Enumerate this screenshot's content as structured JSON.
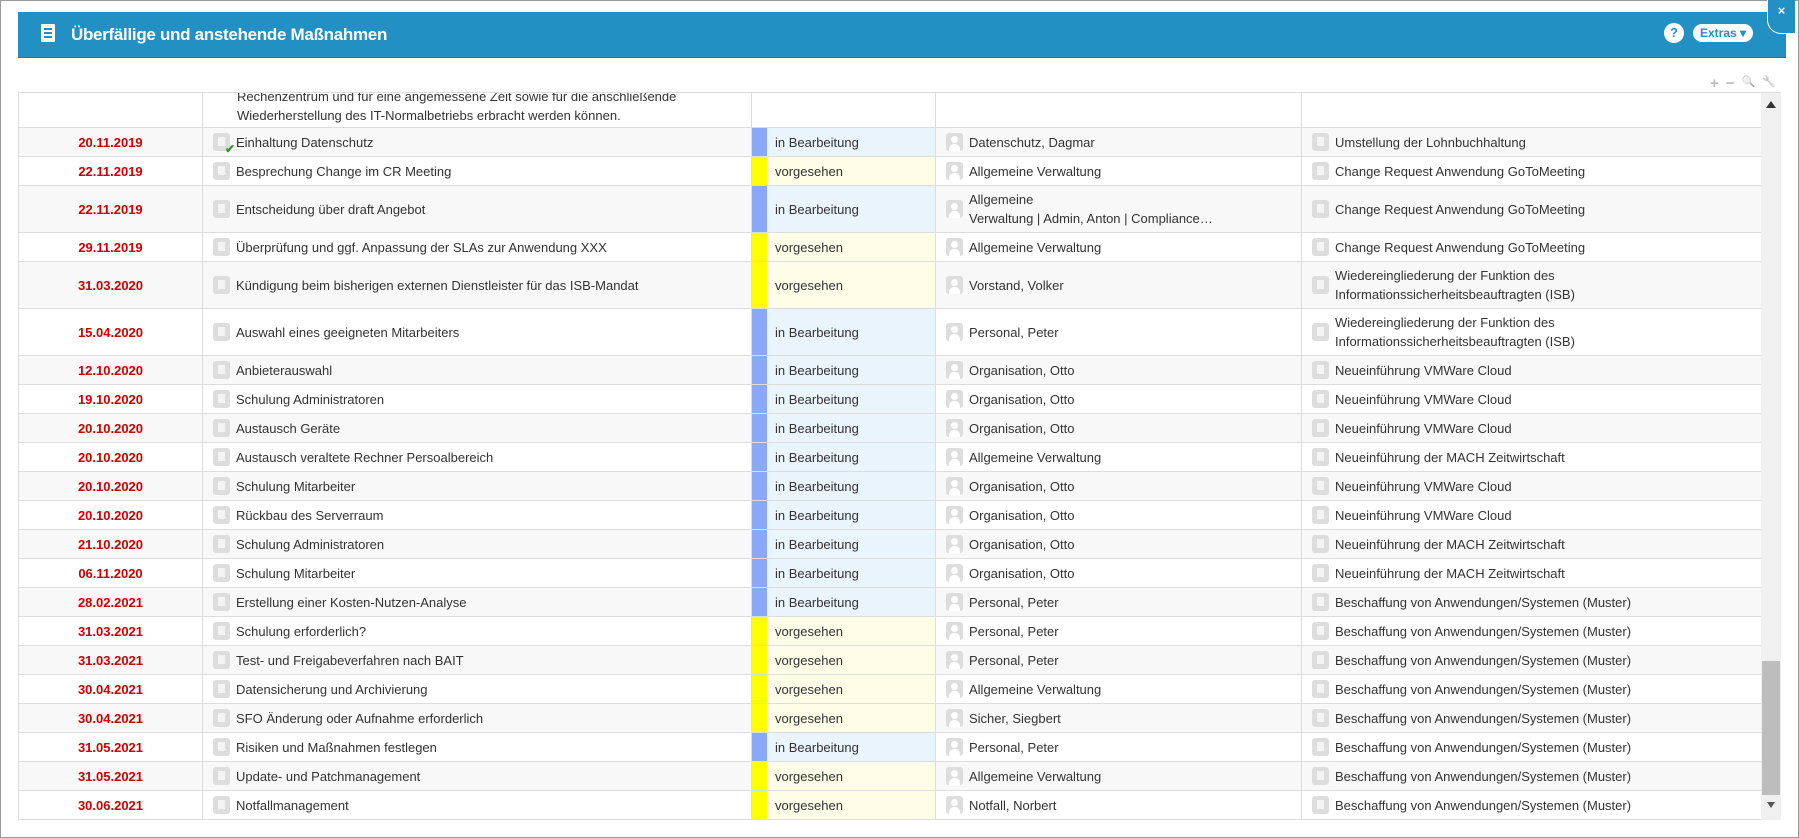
{
  "header": {
    "title": "Überfällige und anstehende Maßnahmen",
    "help": "?",
    "extras": "Extras ▾",
    "close": "×"
  },
  "toolbar": {
    "add": "+",
    "remove": "−",
    "search": "🔍",
    "settings": "🔧"
  },
  "partial_row": {
    "line1": "Rechenzentrum und für eine angemessene Zeit sowie für die anschließende",
    "line2": "Wiederherstellung des IT-Normalbetriebs erbracht werden können."
  },
  "status_colors": {
    "in Bearbeitung": {
      "bar": "#8aa8f8",
      "bg": "#eaf4fd"
    },
    "vorgesehen": {
      "bar": "#ffff00",
      "bg": "#fdfde8"
    }
  },
  "rows": [
    {
      "date": "20.11.2019",
      "title": "Einhaltung Datenschutz",
      "done": true,
      "status": "in Bearbeitung",
      "person": "Datenschutz, Dagmar",
      "related": "Umstellung der Lohnbuchhaltung"
    },
    {
      "date": "22.11.2019",
      "title": "Besprechung Change im CR Meeting",
      "status": "vorgesehen",
      "person": "Allgemeine Verwaltung",
      "related": "Change Request Anwendung GoToMeeting"
    },
    {
      "date": "22.11.2019",
      "title": "Entscheidung über draft Angebot",
      "status": "in Bearbeitung",
      "person": "Allgemeine\nVerwaltung | Admin, Anton | Compliance…",
      "related": "Change Request Anwendung GoToMeeting"
    },
    {
      "date": "29.11.2019",
      "title": "Überprüfung und ggf. Anpassung der SLAs zur Anwendung XXX",
      "status": "vorgesehen",
      "person": "Allgemeine Verwaltung",
      "related": "Change Request Anwendung GoToMeeting"
    },
    {
      "date": "31.03.2020",
      "title": "Kündigung beim bisherigen externen Dienstleister für das ISB-Mandat",
      "status": "vorgesehen",
      "person": "Vorstand, Volker",
      "related": "Wiedereingliederung der Funktion des\nInformationssicherheitsbeauftragten (ISB)"
    },
    {
      "date": "15.04.2020",
      "title": "Auswahl eines geeigneten Mitarbeiters",
      "status": "in Bearbeitung",
      "person": "Personal, Peter",
      "related": "Wiedereingliederung der Funktion des\nInformationssicherheitsbeauftragten (ISB)"
    },
    {
      "date": "12.10.2020",
      "title": "Anbieterauswahl",
      "status": "in Bearbeitung",
      "person": "Organisation, Otto",
      "related": "Neueinführung VMWare Cloud"
    },
    {
      "date": "19.10.2020",
      "title": "Schulung Administratoren",
      "status": "in Bearbeitung",
      "person": "Organisation, Otto",
      "related": "Neueinführung VMWare Cloud"
    },
    {
      "date": "20.10.2020",
      "title": "Austausch Geräte",
      "status": "in Bearbeitung",
      "person": "Organisation, Otto",
      "related": "Neueinführung VMWare Cloud"
    },
    {
      "date": "20.10.2020",
      "title": "Austausch veraltete Rechner Persoalbereich",
      "status": "in Bearbeitung",
      "person": "Allgemeine Verwaltung",
      "related": "Neueinführung der MACH Zeitwirtschaft"
    },
    {
      "date": "20.10.2020",
      "title": "Schulung Mitarbeiter",
      "status": "in Bearbeitung",
      "person": "Organisation, Otto",
      "related": "Neueinführung VMWare Cloud"
    },
    {
      "date": "20.10.2020",
      "title": "Rückbau des Serverraum",
      "status": "in Bearbeitung",
      "person": "Organisation, Otto",
      "related": "Neueinführung VMWare Cloud"
    },
    {
      "date": "21.10.2020",
      "title": "Schulung Administratoren",
      "status": "in Bearbeitung",
      "person": "Organisation, Otto",
      "related": "Neueinführung der MACH Zeitwirtschaft"
    },
    {
      "date": "06.11.2020",
      "title": "Schulung Mitarbeiter",
      "status": "in Bearbeitung",
      "person": "Organisation, Otto",
      "related": "Neueinführung der MACH Zeitwirtschaft"
    },
    {
      "date": "28.02.2021",
      "title": "Erstellung einer Kosten-Nutzen-Analyse",
      "status": "in Bearbeitung",
      "person": "Personal, Peter",
      "related": "Beschaffung von Anwendungen/Systemen (Muster)"
    },
    {
      "date": "31.03.2021",
      "title": "Schulung erforderlich?",
      "status": "vorgesehen",
      "person": "Personal, Peter",
      "related": "Beschaffung von Anwendungen/Systemen (Muster)"
    },
    {
      "date": "31.03.2021",
      "title": "Test- und Freigabeverfahren nach BAIT",
      "status": "vorgesehen",
      "person": "Personal, Peter",
      "related": "Beschaffung von Anwendungen/Systemen (Muster)"
    },
    {
      "date": "30.04.2021",
      "title": "Datensicherung und Archivierung",
      "status": "vorgesehen",
      "person": "Allgemeine Verwaltung",
      "related": "Beschaffung von Anwendungen/Systemen (Muster)"
    },
    {
      "date": "30.04.2021",
      "title": "SFO Änderung oder Aufnahme erforderlich",
      "status": "vorgesehen",
      "person": "Sicher, Siegbert",
      "related": "Beschaffung von Anwendungen/Systemen (Muster)"
    },
    {
      "date": "31.05.2021",
      "title": "Risiken und Maßnahmen festlegen",
      "status": "in Bearbeitung",
      "person": "Personal, Peter",
      "related": "Beschaffung von Anwendungen/Systemen (Muster)"
    },
    {
      "date": "31.05.2021",
      "title": "Update- und Patchmanagement",
      "status": "vorgesehen",
      "person": "Allgemeine Verwaltung",
      "related": "Beschaffung von Anwendungen/Systemen (Muster)"
    },
    {
      "date": "30.06.2021",
      "title": "Notfallmanagement",
      "status": "vorgesehen",
      "person": "Notfall, Norbert",
      "related": "Beschaffung von Anwendungen/Systemen (Muster)"
    }
  ]
}
